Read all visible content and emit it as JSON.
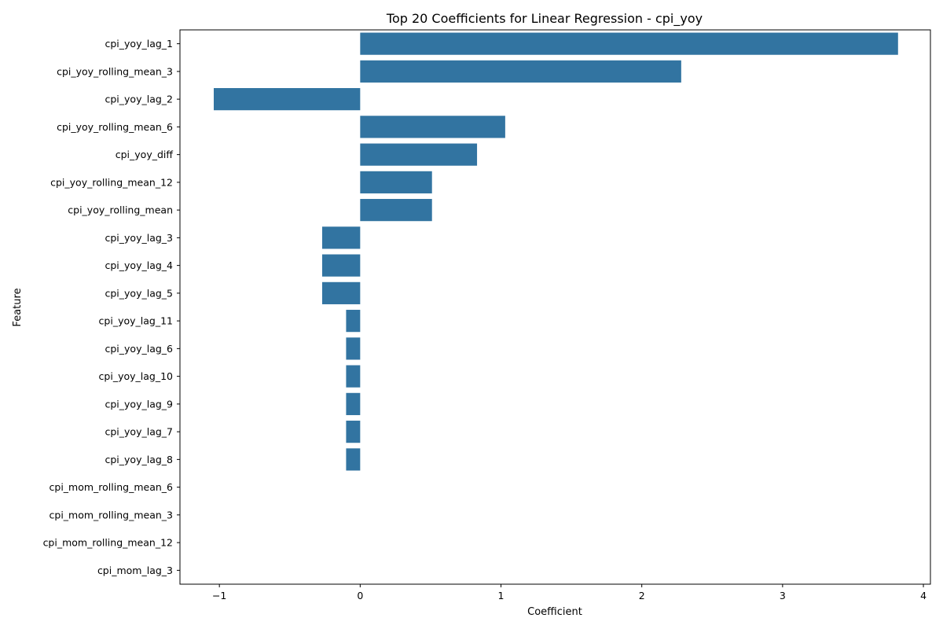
{
  "chart_data": {
    "type": "bar",
    "orientation": "horizontal",
    "title": "Top 20 Coefficients for Linear Regression - cpi_yoy",
    "xlabel": "Coefficient",
    "ylabel": "Feature",
    "xlim": [
      -1.28,
      4.05
    ],
    "xticks": [
      -1,
      0,
      1,
      2,
      3,
      4
    ],
    "xtick_labels": [
      "−1",
      "0",
      "1",
      "2",
      "3",
      "4"
    ],
    "grid": false,
    "bar_color": "#3274a1",
    "categories": [
      "cpi_yoy_lag_1",
      "cpi_yoy_rolling_mean_3",
      "cpi_yoy_lag_2",
      "cpi_yoy_rolling_mean_6",
      "cpi_yoy_diff",
      "cpi_yoy_rolling_mean_12",
      "cpi_yoy_rolling_mean",
      "cpi_yoy_lag_3",
      "cpi_yoy_lag_4",
      "cpi_yoy_lag_5",
      "cpi_yoy_lag_11",
      "cpi_yoy_lag_6",
      "cpi_yoy_lag_10",
      "cpi_yoy_lag_9",
      "cpi_yoy_lag_7",
      "cpi_yoy_lag_8",
      "cpi_mom_rolling_mean_6",
      "cpi_mom_rolling_mean_3",
      "cpi_mom_rolling_mean_12",
      "cpi_mom_lag_3"
    ],
    "values": [
      3.82,
      2.28,
      -1.04,
      1.03,
      0.83,
      0.51,
      0.51,
      -0.27,
      -0.27,
      -0.27,
      -0.1,
      -0.1,
      -0.1,
      -0.1,
      -0.1,
      -0.1,
      0.0,
      0.0,
      0.0,
      0.0
    ]
  }
}
